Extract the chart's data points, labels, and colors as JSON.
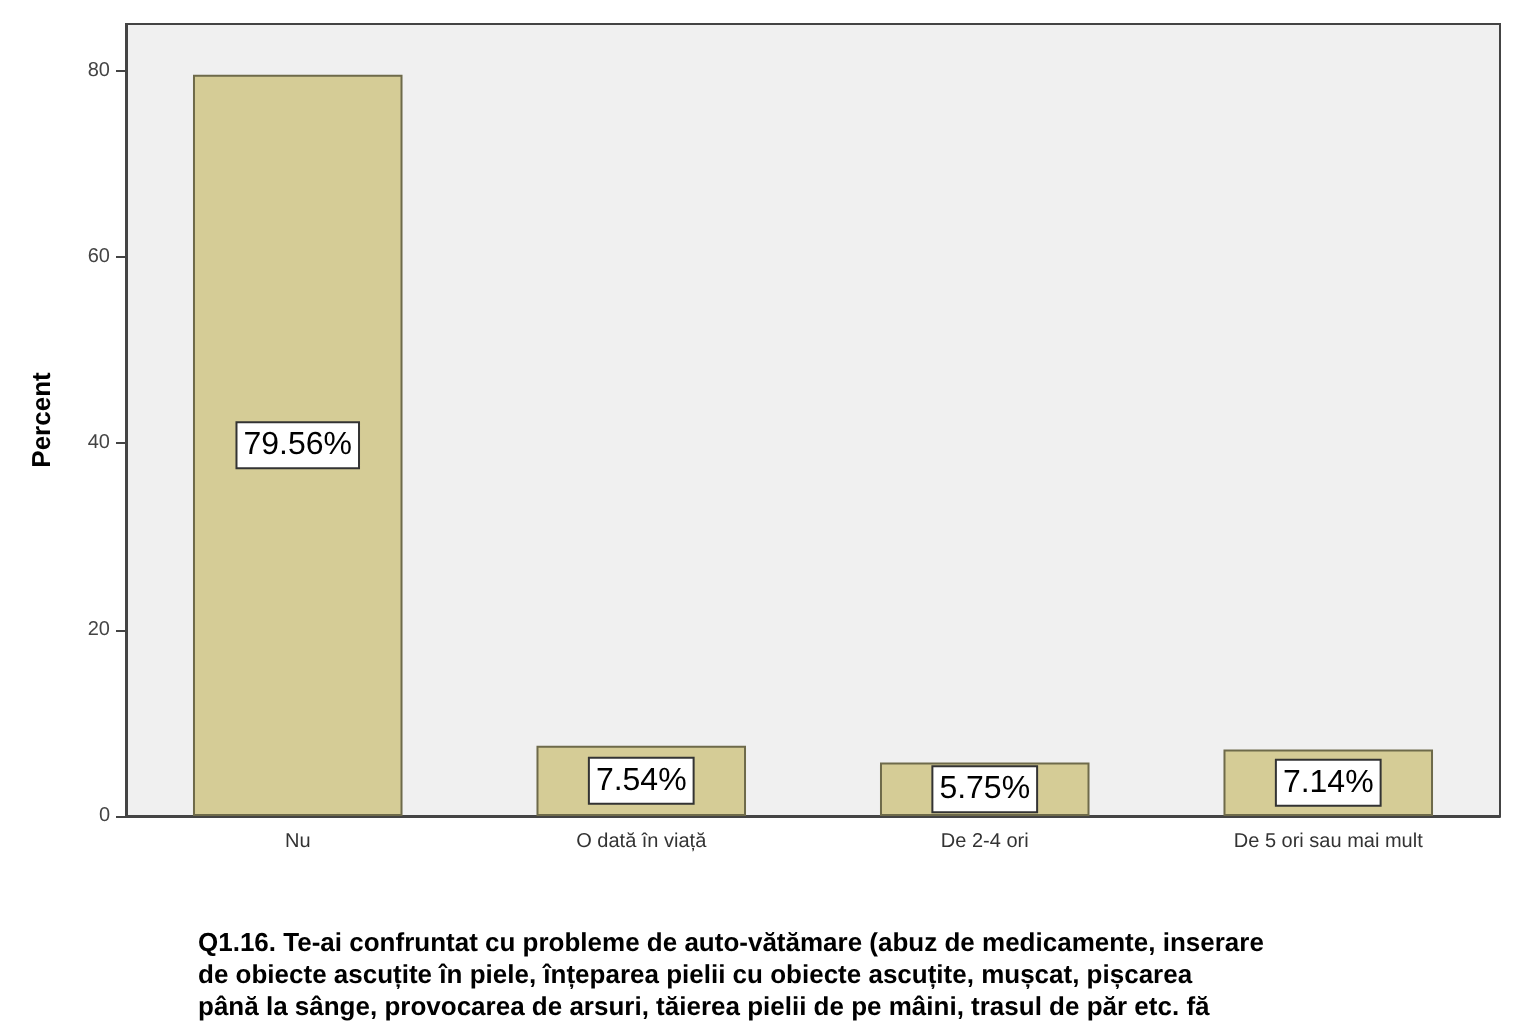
{
  "chart_data": {
    "type": "bar",
    "xlabel": "Q1.16. Te-ai confruntat cu probleme de auto-vătămare (abuz de medicamente, inserare de obiecte ascuțite în piele, înțeparea pielii cu obiecte ascuțite, mușcat, pișcarea până la sânge, provocarea de arsuri, tăierea pielii de pe mâini, trasul de păr etc. fă",
    "ylabel": "Percent",
    "categories": [
      "Nu",
      "O dată în viață",
      "De 2-4 ori",
      "De 5 ori sau mai mult"
    ],
    "values": [
      79.56,
      7.54,
      5.75,
      7.14
    ],
    "value_labels": [
      "79.56%",
      "7.54%",
      "5.75%",
      "7.14%"
    ],
    "color": "#d5cc96",
    "ylim": [
      0,
      85
    ],
    "yticks": [
      0,
      20,
      40,
      60,
      80
    ],
    "grid": false
  }
}
